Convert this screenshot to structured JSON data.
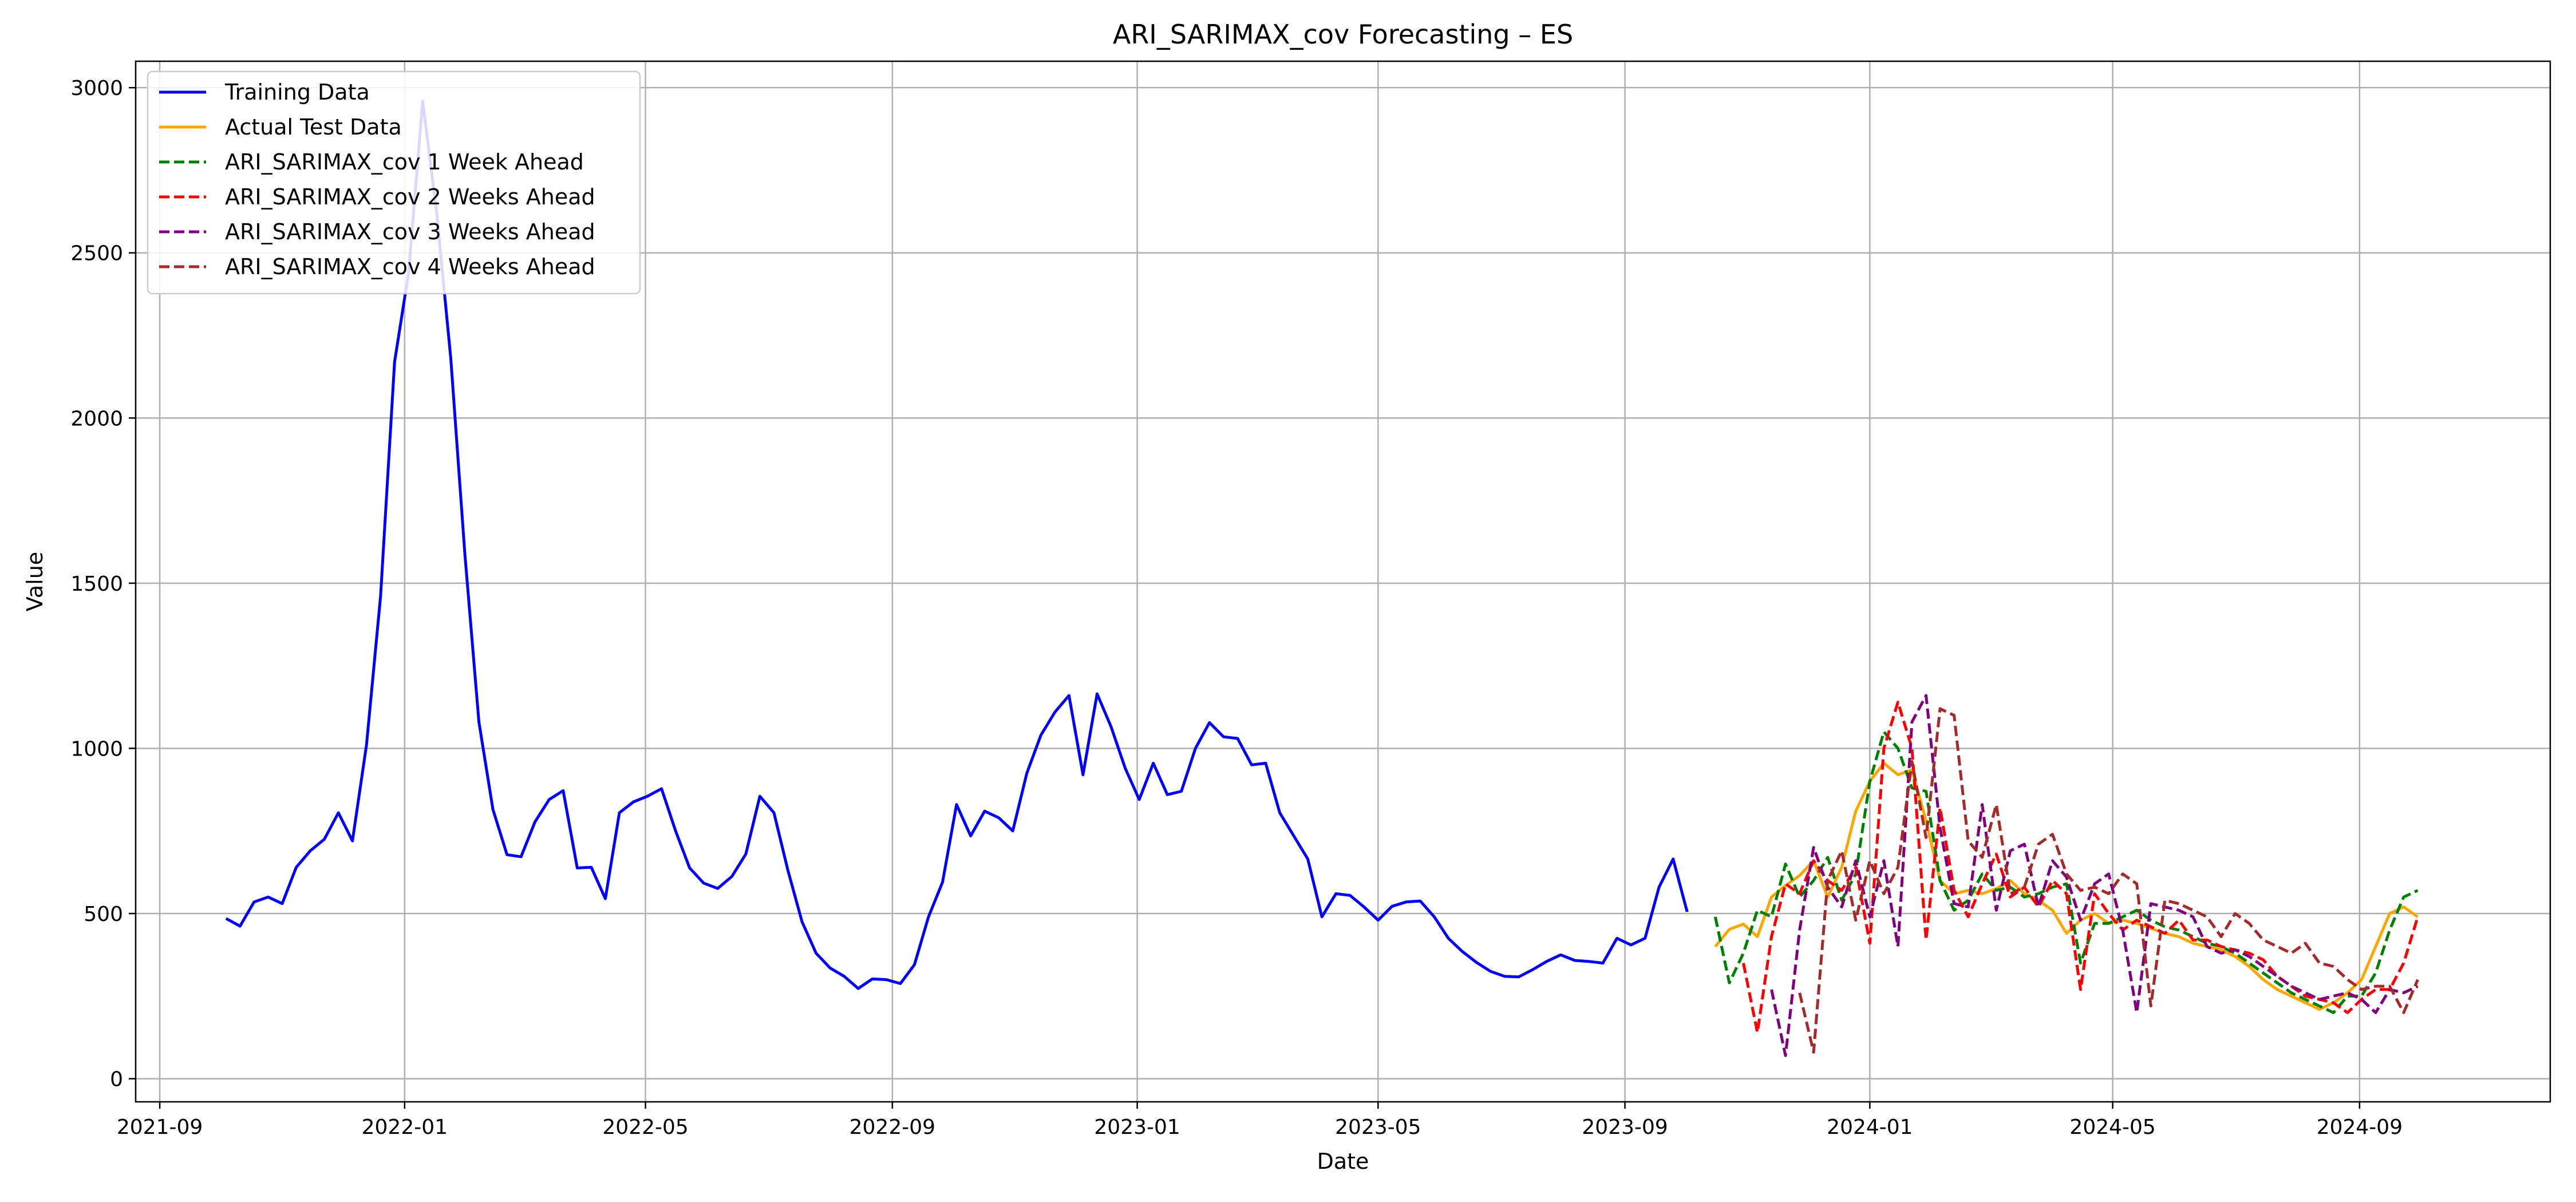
{
  "chart_data": {
    "type": "line",
    "title": "ARI_SARIMAX_cov Forecasting – ES",
    "xlabel": "Date",
    "ylabel": "Value",
    "xlim": [
      "2021-08-20",
      "2024-12-05"
    ],
    "ylim": [
      -70,
      3080
    ],
    "x_ticks": [
      "2021-09-01",
      "2022-01-01",
      "2022-05-01",
      "2022-09-01",
      "2023-01-01",
      "2023-05-01",
      "2023-09-01",
      "2024-01-01",
      "2024-05-01",
      "2024-09-01"
    ],
    "x_tick_labels": [
      "2021-09",
      "2022-01",
      "2022-05",
      "2022-09",
      "2023-01",
      "2023-05",
      "2023-09",
      "2024-01",
      "2024-05",
      "2024-09"
    ],
    "y_ticks": [
      0,
      500,
      1000,
      1500,
      2000,
      2500,
      3000
    ],
    "y_tick_labels": [
      "0",
      "500",
      "1000",
      "1500",
      "2000",
      "2500",
      "3000"
    ],
    "grid": true,
    "legend_position": "upper-left",
    "series": [
      {
        "name": "Training Data",
        "color": "#0000ff",
        "dash": "solid",
        "start": "2021-10-04",
        "step_days": 7,
        "values": [
          485,
          462,
          535,
          550,
          530,
          640,
          690,
          725,
          805,
          720,
          1010,
          1460,
          2170,
          2440,
          2960,
          2620,
          2180,
          1590,
          1080,
          815,
          678,
          672,
          778,
          845,
          872,
          638,
          640,
          545,
          805,
          838,
          855,
          878,
          750,
          638,
          592,
          576,
          612,
          680,
          855,
          805,
          630,
          475,
          380,
          335,
          310,
          273,
          302,
          300,
          288,
          345,
          490,
          595,
          830,
          735,
          810,
          790,
          750,
          925,
          1040,
          1110,
          1160,
          920,
          1165,
          1065,
          940,
          845,
          955,
          860,
          870,
          1000,
          1078,
          1035,
          1030,
          950,
          955,
          805,
          735,
          665,
          490,
          560,
          555,
          520,
          480,
          522,
          535,
          538,
          490,
          425,
          385,
          352,
          325,
          310,
          308,
          330,
          355,
          375,
          358,
          355,
          350,
          425,
          405,
          425,
          580,
          665,
          505
        ]
      },
      {
        "name": "Actual Test Data",
        "color": "#ffa500",
        "dash": "solid",
        "start": "2023-10-16",
        "step_days": 7,
        "values": [
          400,
          452,
          468,
          430,
          550,
          585,
          615,
          660,
          550,
          640,
          810,
          900,
          955,
          920,
          935,
          780,
          600,
          560,
          570,
          560,
          575,
          600,
          560,
          540,
          510,
          440,
          480,
          500,
          470,
          480,
          470,
          455,
          440,
          430,
          410,
          400,
          390,
          370,
          340,
          300,
          270,
          250,
          230,
          210,
          230,
          260,
          300,
          400,
          500,
          520,
          490
        ]
      },
      {
        "name": "ARI_SARIMAX_cov 1 Week Ahead",
        "color": "#008000",
        "dash": "dashed",
        "start": "2023-10-16",
        "step_days": 7,
        "values": [
          490,
          290,
          380,
          510,
          490,
          650,
          550,
          600,
          670,
          540,
          620,
          900,
          1050,
          1000,
          880,
          870,
          600,
          510,
          540,
          620,
          570,
          580,
          550,
          560,
          580,
          590,
          350,
          470,
          470,
          490,
          510,
          480,
          460,
          450,
          430,
          410,
          400,
          380,
          350,
          320,
          290,
          260,
          240,
          220,
          200,
          250,
          250,
          320,
          450,
          550,
          570
        ]
      },
      {
        "name": "ARI_SARIMAX_cov 2 Weeks Ahead",
        "color": "#ff0000",
        "dash": "dashed",
        "start": "2023-10-16",
        "step_days": 7,
        "values": [
          null,
          null,
          350,
          140,
          430,
          590,
          560,
          660,
          600,
          570,
          640,
          410,
          1000,
          1140,
          1000,
          420,
          820,
          570,
          490,
          590,
          680,
          550,
          580,
          520,
          600,
          560,
          270,
          560,
          500,
          450,
          480,
          460,
          440,
          480,
          420,
          420,
          400,
          390,
          380,
          360,
          310,
          280,
          250,
          240,
          230,
          200,
          240,
          270,
          270,
          350,
          490
        ]
      },
      {
        "name": "ARI_SARIMAX_cov 3 Weeks Ahead",
        "color": "#800080",
        "dash": "dashed",
        "start": "2023-10-16",
        "step_days": 7,
        "values": [
          null,
          null,
          null,
          null,
          270,
          70,
          450,
          700,
          580,
          520,
          660,
          490,
          660,
          400,
          1080,
          1160,
          760,
          530,
          520,
          830,
          510,
          690,
          710,
          520,
          660,
          610,
          480,
          590,
          620,
          450,
          200,
          530,
          520,
          510,
          490,
          400,
          380,
          390,
          370,
          340,
          310,
          280,
          260,
          240,
          250,
          260,
          240,
          200,
          270,
          260,
          280
        ]
      },
      {
        "name": "ARI_SARIMAX_cov 4 Weeks Ahead",
        "color": "#a52a2a",
        "dash": "dashed",
        "start": "2023-10-16",
        "step_days": 7,
        "values": [
          null,
          null,
          null,
          null,
          null,
          null,
          260,
          80,
          600,
          690,
          480,
          660,
          560,
          640,
          960,
          730,
          1120,
          1100,
          720,
          670,
          830,
          560,
          580,
          710,
          740,
          620,
          570,
          580,
          560,
          620,
          590,
          220,
          540,
          530,
          510,
          490,
          430,
          500,
          470,
          420,
          400,
          380,
          410,
          350,
          340,
          300,
          270,
          280,
          280,
          200,
          300
        ]
      }
    ]
  }
}
